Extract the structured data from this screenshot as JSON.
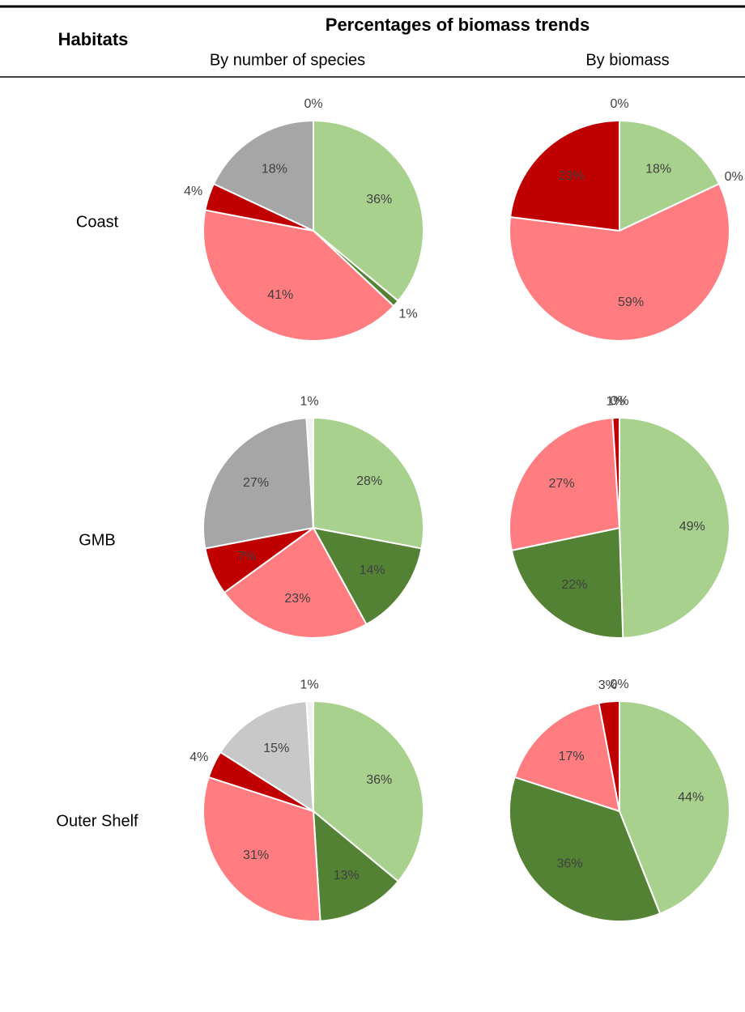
{
  "table": {
    "header": {
      "row_label": "Habitats",
      "title": "Percentages of biomass trends",
      "columns": [
        "By number of species",
        "By biomass"
      ]
    },
    "rows": [
      "Coast",
      "GMB",
      "Outer Shelf"
    ]
  },
  "chart_data": [
    {
      "type": "pie",
      "values": [
        36,
        1,
        41,
        4,
        18,
        0
      ],
      "value_labels": [
        "36%",
        "1%",
        "41%",
        "4%",
        "18%",
        "0%"
      ],
      "colors": [
        "#a9d18e",
        "#548235",
        "#ff7c80",
        "#c00000",
        "#a6a6a6",
        "#f2f2f2"
      ]
    },
    {
      "type": "pie",
      "values": [
        18,
        0,
        59,
        23,
        0
      ],
      "value_labels": [
        "18%",
        "0%",
        "59%",
        "23%",
        "0%"
      ],
      "colors": [
        "#a9d18e",
        "#548235",
        "#ff7c80",
        "#c00000",
        "#f2f2f2"
      ]
    },
    {
      "type": "pie",
      "values": [
        28,
        14,
        23,
        7,
        27,
        1
      ],
      "value_labels": [
        "28%",
        "14%",
        "23%",
        "7%",
        "27%",
        "1%"
      ],
      "colors": [
        "#a9d18e",
        "#548235",
        "#ff7c80",
        "#c00000",
        "#a6a6a6",
        "#f2f2f2"
      ]
    },
    {
      "type": "pie",
      "values": [
        49,
        22,
        27,
        1,
        0
      ],
      "value_labels": [
        "49%",
        "22%",
        "27%",
        "1%",
        "0%"
      ],
      "colors": [
        "#a9d18e",
        "#548235",
        "#ff7c80",
        "#c00000",
        "#f2f2f2"
      ]
    },
    {
      "type": "pie",
      "values": [
        36,
        13,
        31,
        4,
        15,
        1
      ],
      "value_labels": [
        "36%",
        "13%",
        "31%",
        "4%",
        "15%",
        "1%"
      ],
      "colors": [
        "#a9d18e",
        "#548235",
        "#ff7c80",
        "#c00000",
        "#c8c8c8",
        "#f2f2f2"
      ]
    },
    {
      "type": "pie",
      "values": [
        44,
        36,
        17,
        3,
        0
      ],
      "value_labels": [
        "44%",
        "36%",
        "17%",
        "3%",
        "0%"
      ],
      "colors": [
        "#a9d18e",
        "#548235",
        "#ff7c80",
        "#c00000",
        "#f2f2f2"
      ]
    }
  ]
}
